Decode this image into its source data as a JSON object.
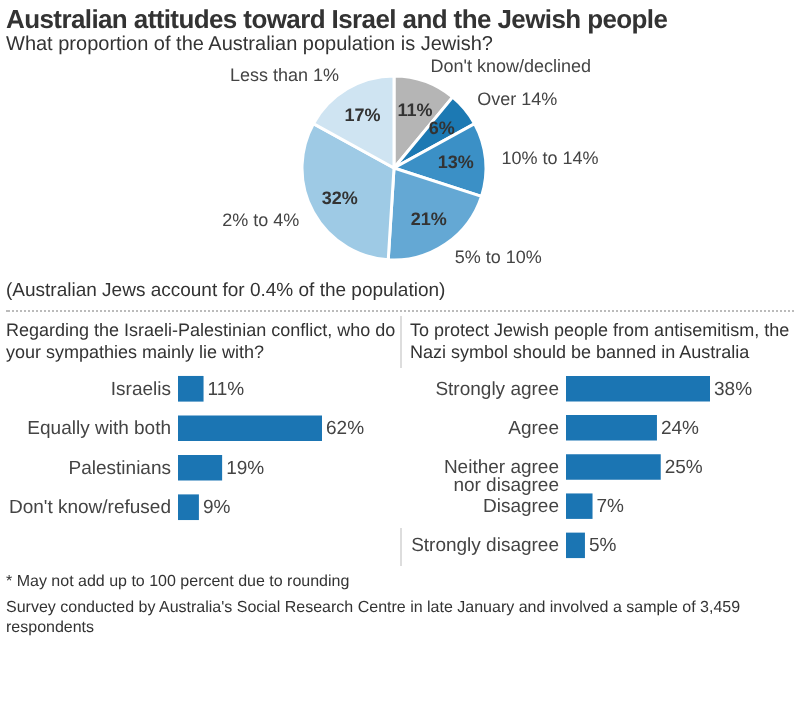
{
  "chart_data": [
    {
      "type": "pie",
      "title": "Australian attitudes toward Israel and the Jewish people",
      "subtitle": "What proportion of the Australian population is Jewish?",
      "categories": [
        "Don't know/declined",
        "Over 14%",
        "10% to 14%",
        "5% to 10%",
        "2% to 4%",
        "Less than 1%"
      ],
      "values": [
        11,
        6,
        13,
        21,
        32,
        17
      ],
      "colors": [
        "#b5b5b5",
        "#1c79b3",
        "#3b90c6",
        "#64a8d4",
        "#9ecae5",
        "#cfe4f2"
      ],
      "value_labels": [
        "11%",
        "6%",
        "13%",
        "21%",
        "32%",
        "17%"
      ],
      "annotations": [
        "(Australian Jews account for 0.4% of the population)"
      ]
    },
    {
      "type": "bar",
      "orientation": "horizontal",
      "title": "Regarding the Israeli-Palestinian conflict, who do your sympathies mainly lie with?",
      "categories": [
        "Israelis",
        "Equally with both",
        "Palestinians",
        "Don't know/refused"
      ],
      "values": [
        11,
        62,
        19,
        9
      ],
      "color": "#1b75b3",
      "value_labels": [
        "11%",
        "62%",
        "19%",
        "9%"
      ]
    },
    {
      "type": "bar",
      "orientation": "horizontal",
      "title": "To protect Jewish people from antisemitism, the Nazi symbol should be banned in Australia",
      "categories": [
        "Strongly agree",
        "Agree",
        "Neither agree nor disagree",
        "Disagree",
        "Strongly disagree"
      ],
      "values": [
        38,
        24,
        25,
        7,
        5
      ],
      "color": "#1b75b3",
      "value_labels": [
        "38%",
        "24%",
        "25%",
        "7%",
        "5%"
      ],
      "annotations": [
        "* May not add up to 100 percent due to rounding",
        "Survey conducted by Australia's Social Research Centre in late January and involved a sample of 3,459 respondents"
      ]
    }
  ]
}
